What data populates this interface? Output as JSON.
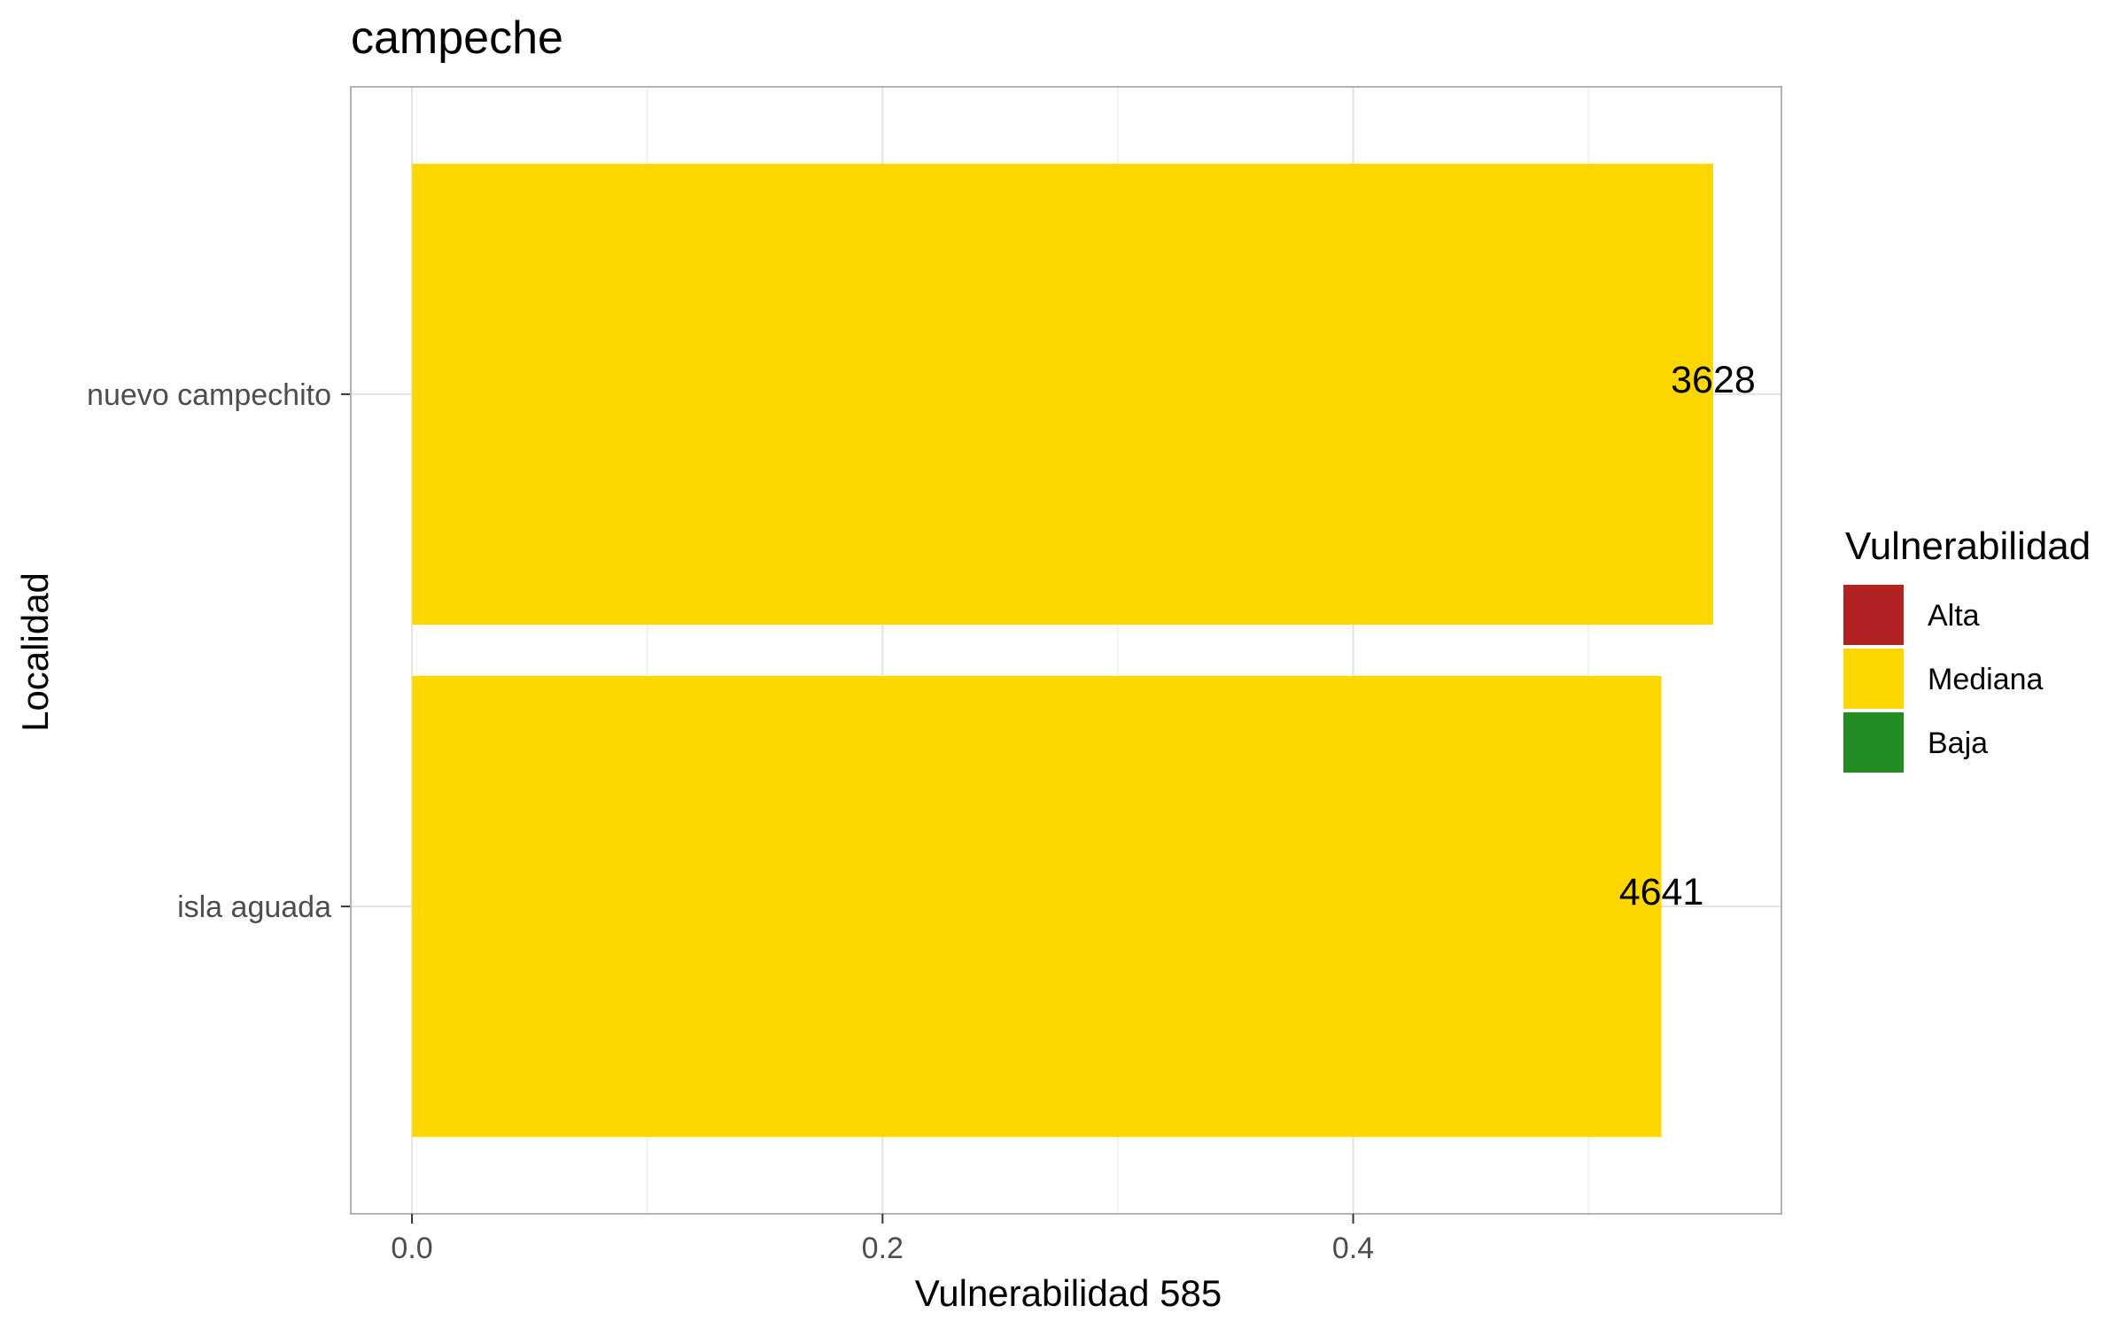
{
  "chart_data": {
    "type": "bar",
    "orientation": "horizontal",
    "title": "campeche",
    "xlabel": "Vulnerabilidad 585",
    "ylabel": "Localidad",
    "xlim": [
      -0.026,
      0.582
    ],
    "x_ticks": [
      0.0,
      0.2,
      0.4
    ],
    "x_tick_labels": [
      "0.0",
      "0.2",
      "0.4"
    ],
    "categories": [
      "nuevo campechito",
      "isla aguada"
    ],
    "values": [
      0.553,
      0.531
    ],
    "bar_labels": [
      "3628",
      "4641"
    ],
    "bar_groups": [
      "Mediana",
      "Mediana"
    ],
    "grid": true,
    "legend": {
      "title": "Vulnerabilidad",
      "position": "right",
      "items": [
        {
          "label": "Alta",
          "color": "#B22222"
        },
        {
          "label": "Mediana",
          "color": "#FFD700"
        },
        {
          "label": "Baja",
          "color": "#228B22"
        }
      ]
    },
    "colors": {
      "Alta": "#B22222",
      "Mediana": "#FFD700",
      "Baja": "#228B22"
    }
  }
}
